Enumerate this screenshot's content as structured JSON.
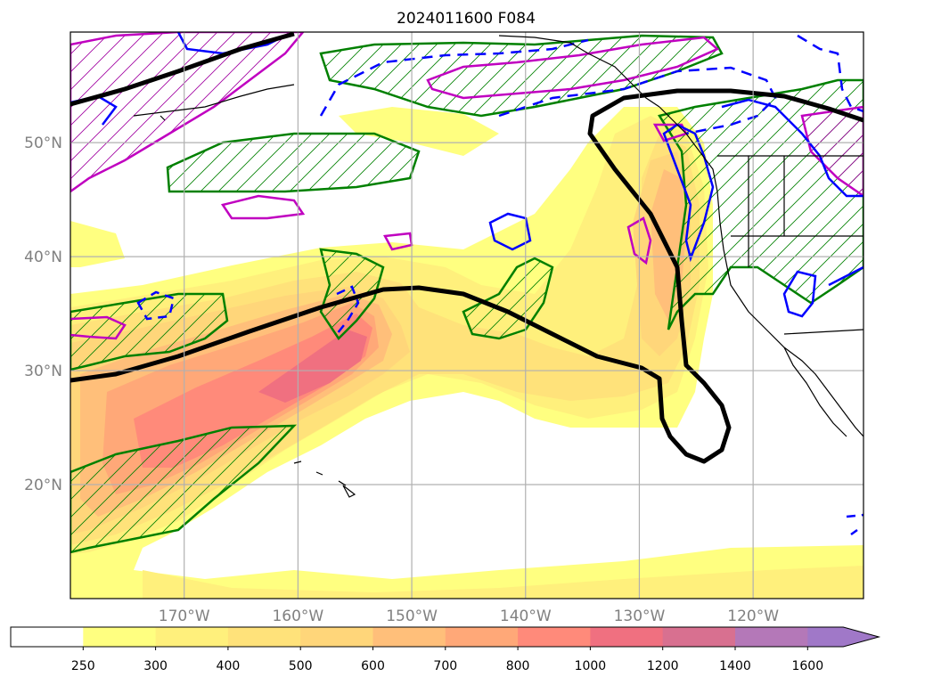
{
  "title": "2024011600 F084",
  "lat_labels": [
    "50°N",
    "40°N",
    "30°N",
    "20°N"
  ],
  "lat_values": [
    50,
    40,
    30,
    20
  ],
  "lon_labels": [
    "170°W",
    "160°W",
    "150°W",
    "140°W",
    "130°W",
    "120°W"
  ],
  "lon_values": [
    -170,
    -160,
    -150,
    -140,
    -130,
    -120
  ],
  "extent": {
    "lon_min": -180,
    "lon_max": -110.3,
    "lat_min": 10,
    "lat_max": 59.7
  },
  "colorbar": {
    "ticks": [
      "250",
      "300",
      "400",
      "500",
      "600",
      "700",
      "800",
      "1000",
      "1200",
      "1400",
      "1600"
    ],
    "below_color": "#ffffff",
    "colors": [
      "#ffff80",
      "#fff07c",
      "#ffe27a",
      "#ffd67a",
      "#ffbf7a",
      "#ffa878",
      "#ff8a7a",
      "#f07080",
      "#d87090",
      "#b478b8",
      "#a078c8"
    ],
    "extend": "max"
  },
  "colors": {
    "ivt_contours": "#000000",
    "green_contours": "#008000",
    "blue_contours": "#0000ff",
    "magenta_contours": "#c000c0",
    "grid": "#b0b0b0",
    "coast": "#000000"
  }
}
